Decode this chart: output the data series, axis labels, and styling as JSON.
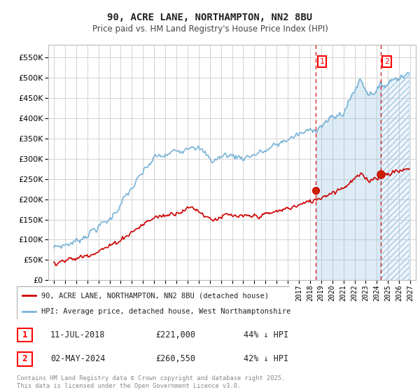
{
  "title": "90, ACRE LANE, NORTHAMPTON, NN2 8BU",
  "subtitle": "Price paid vs. HM Land Registry's House Price Index (HPI)",
  "background_color": "#ffffff",
  "plot_bg_color": "#ffffff",
  "grid_color": "#cccccc",
  "hpi_color": "#7ab4d8",
  "hpi_fill_color": "#daeaf5",
  "price_color": "#cc0000",
  "dashed_line_color": "#cc0000",
  "ylabel_values": [
    0,
    50000,
    100000,
    150000,
    200000,
    250000,
    300000,
    350000,
    400000,
    450000,
    500000,
    550000
  ],
  "ylabel_labels": [
    "£0",
    "£50K",
    "£100K",
    "£150K",
    "£200K",
    "£250K",
    "£300K",
    "£350K",
    "£400K",
    "£450K",
    "£500K",
    "£550K"
  ],
  "xmin": 1994.5,
  "xmax": 2027.5,
  "ymin": 0,
  "ymax": 580000,
  "sale1_date": 2018.53,
  "sale1_price": 221000,
  "sale1_label": "1",
  "sale2_date": 2024.33,
  "sale2_price": 260550,
  "sale2_label": "2",
  "legend_line1": "90, ACRE LANE, NORTHAMPTON, NN2 8BU (detached house)",
  "legend_line2": "HPI: Average price, detached house, West Northamptonshire",
  "table_row1": [
    "1",
    "11-JUL-2018",
    "£221,000",
    "44% ↓ HPI"
  ],
  "table_row2": [
    "2",
    "02-MAY-2024",
    "£260,550",
    "42% ↓ HPI"
  ],
  "footer": "Contains HM Land Registry data © Crown copyright and database right 2025.\nThis data is licensed under the Open Government Licence v3.0."
}
